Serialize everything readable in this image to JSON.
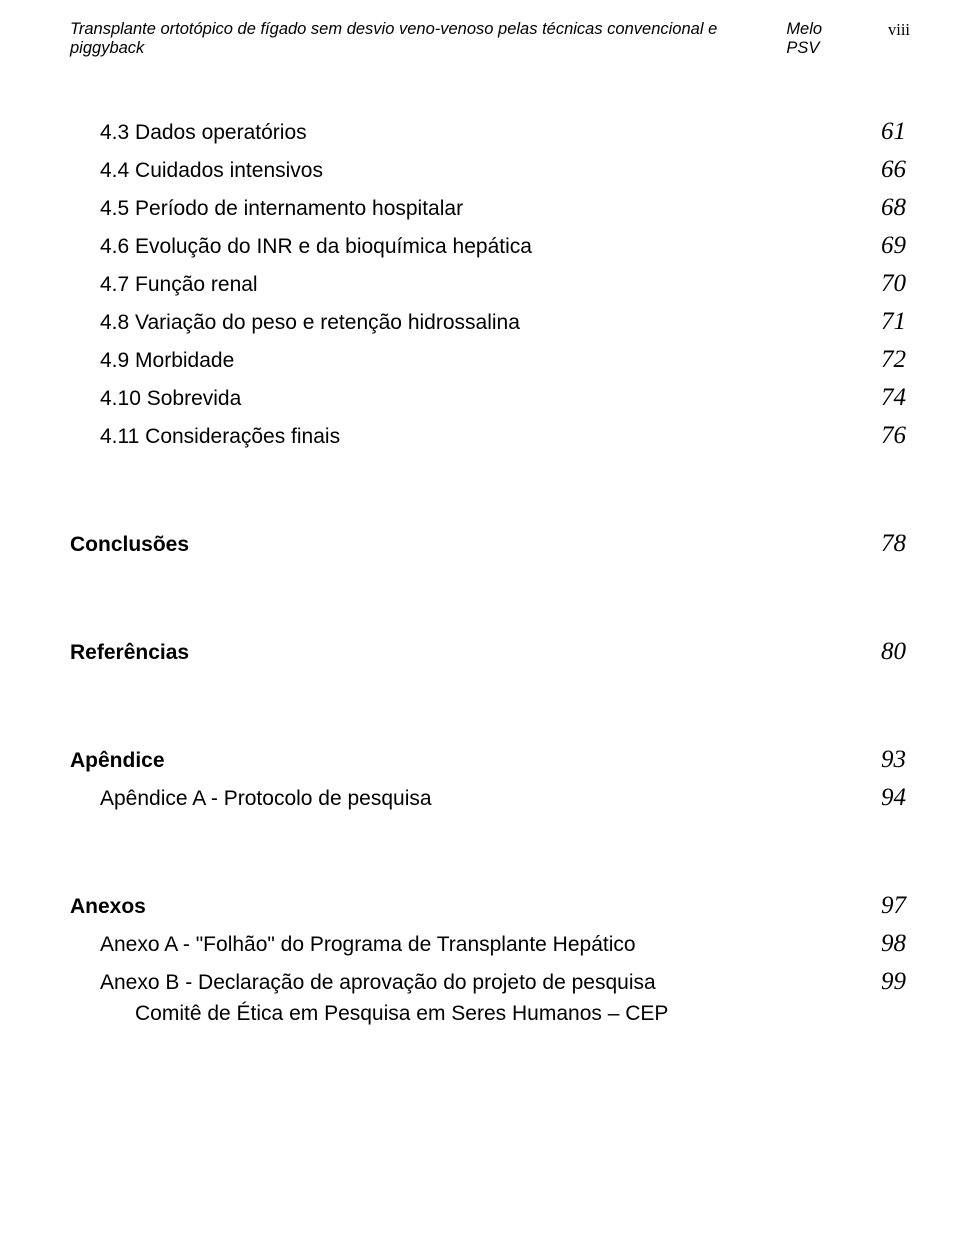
{
  "header": {
    "title": "Transplante ortotópico de fígado sem desvio veno-venoso pelas técnicas convencional e piggyback",
    "author": "Melo PSV",
    "pageRoman": "viii"
  },
  "sections": [
    {
      "rows": [
        {
          "label": "4.3 Dados operatórios",
          "page": "61",
          "bold": false,
          "indent": 1
        },
        {
          "label": "4.4 Cuidados intensivos",
          "page": "66",
          "bold": false,
          "indent": 1
        },
        {
          "label": "4.5 Período de internamento hospitalar",
          "page": "68",
          "bold": false,
          "indent": 1
        },
        {
          "label": "4.6 Evolução do INR e da bioquímica hepática",
          "page": "69",
          "bold": false,
          "indent": 1
        },
        {
          "label": "4.7 Função renal",
          "page": "70",
          "bold": false,
          "indent": 1
        },
        {
          "label": "4.8 Variação do peso e retenção hidrossalina",
          "page": "71",
          "bold": false,
          "indent": 1
        },
        {
          "label": "4.9 Morbidade",
          "page": "72",
          "bold": false,
          "indent": 1
        },
        {
          "label": "4.10 Sobrevida",
          "page": "74",
          "bold": false,
          "indent": 1
        },
        {
          "label": "4.11 Considerações finais",
          "page": "76",
          "bold": false,
          "indent": 1
        }
      ]
    },
    {
      "rows": [
        {
          "label": "Conclusões",
          "page": "78",
          "bold": true,
          "indent": 0
        }
      ]
    },
    {
      "rows": [
        {
          "label": "Referências",
          "page": "80",
          "bold": true,
          "indent": 0
        }
      ]
    },
    {
      "rows": [
        {
          "label": "Apêndice",
          "page": "93",
          "bold": true,
          "indent": 0
        },
        {
          "label": "Apêndice A - Protocolo de pesquisa",
          "page": "94",
          "bold": false,
          "indent": 2
        }
      ]
    },
    {
      "rows": [
        {
          "label": "Anexos",
          "page": "97",
          "bold": true,
          "indent": 0
        },
        {
          "label": "Anexo A - \"Folhão\" do Programa de Transplante Hepático",
          "page": "98",
          "bold": false,
          "indent": 2
        },
        {
          "label": "Anexo B - Declaração de aprovação do projeto de pesquisa",
          "page": "99",
          "bold": false,
          "indent": 2,
          "sub": "Comitê de Ética em Pesquisa em Seres Humanos – CEP"
        }
      ]
    }
  ],
  "style": {
    "bodyWidth": 960,
    "background": "#ffffff",
    "textColor": "#000000",
    "headerFontSize": 16.5,
    "labelFontSize": 21,
    "pageFontSize": 25,
    "pageFontStyle": "italic",
    "pageFontFamily": "Times New Roman",
    "indent1": 30,
    "indent2": 30,
    "subIndent": 65,
    "groupGap": 80,
    "rowGap": 10
  }
}
